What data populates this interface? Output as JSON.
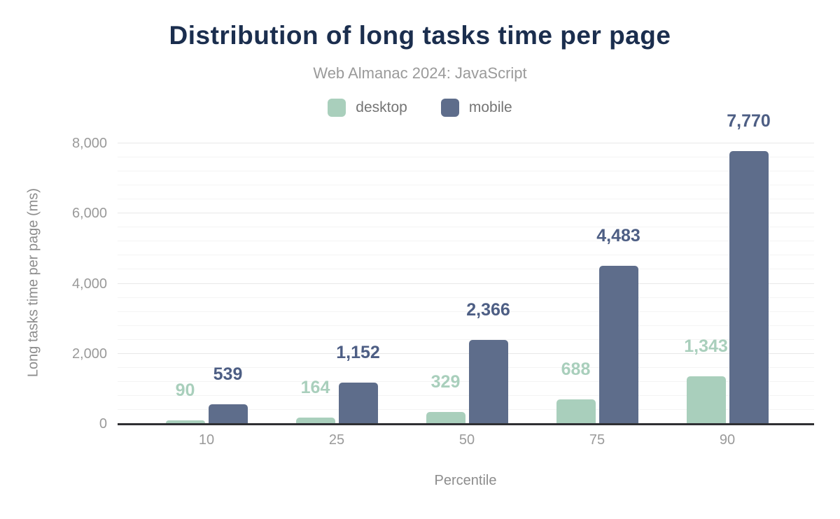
{
  "header": {
    "title": "Distribution of long tasks time per page",
    "subtitle": "Web Almanac 2024: JavaScript"
  },
  "legend": {
    "items": [
      {
        "label": "desktop",
        "color": "#a9cfbc"
      },
      {
        "label": "mobile",
        "color": "#5e6d8b"
      }
    ]
  },
  "chart_data": {
    "type": "bar",
    "title": "Distribution of long tasks time per page",
    "subtitle": "Web Almanac 2024: JavaScript",
    "categories": [
      "10",
      "25",
      "50",
      "75",
      "90"
    ],
    "series": [
      {
        "name": "desktop",
        "color": "#a9cfbc",
        "label_color": "#a9cfbc",
        "values": [
          90,
          164,
          329,
          688,
          1343
        ],
        "labels": [
          "90",
          "164",
          "329",
          "688",
          "1,343"
        ]
      },
      {
        "name": "mobile",
        "color": "#5e6d8b",
        "label_color": "#4d5e84",
        "values": [
          539,
          1152,
          2366,
          4483,
          7770
        ],
        "labels": [
          "539",
          "1,152",
          "2,366",
          "4,483",
          "7,770"
        ]
      }
    ],
    "xlabel": "Percentile",
    "ylabel": "Long tasks time per page (ms)",
    "ylim": [
      0,
      8000
    ],
    "ytick_interval": 2000,
    "minor_tick_interval": 400,
    "yticks": [
      {
        "value": 0,
        "label": "0"
      },
      {
        "value": 2000,
        "label": "2,000"
      },
      {
        "value": 4000,
        "label": "4,000"
      },
      {
        "value": 6000,
        "label": "6,000"
      },
      {
        "value": 8000,
        "label": "8,000"
      }
    ],
    "grid": true,
    "legend_position": "top"
  },
  "colors": {
    "title": "#1b2e4e",
    "subtitle_text": "#9a9a9a",
    "legend_text": "#757575",
    "tick_text": "#9a9a9a",
    "axis_title_text": "#8c8c8c",
    "axis_line": "#2f2f33",
    "grid_minor": "#f4f4f4",
    "grid_major": "#e8e8e8",
    "background": "#ffffff"
  }
}
